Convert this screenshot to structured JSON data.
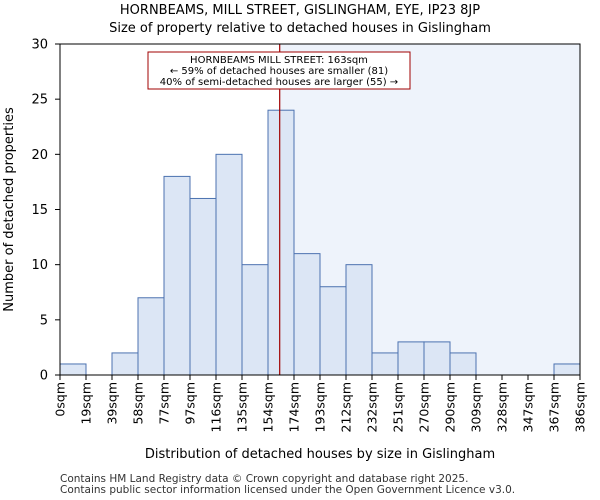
{
  "chart_data": {
    "type": "bar",
    "title_line1": "HORNBEAMS, MILL STREET, GISLINGHAM, EYE, IP23 8JP",
    "title_line2": "Size of property relative to detached houses in Gislingham",
    "xlabel": "Distribution of detached houses by size in Gislingham",
    "ylabel": "Number of detached properties",
    "ylim": [
      0,
      30
    ],
    "y_ticks": [
      "0",
      "5",
      "10",
      "15",
      "20",
      "25",
      "30"
    ],
    "bin_edges": [
      "0sqm",
      "19sqm",
      "39sqm",
      "58sqm",
      "77sqm",
      "97sqm",
      "116sqm",
      "135sqm",
      "154sqm",
      "174sqm",
      "193sqm",
      "212sqm",
      "232sqm",
      "251sqm",
      "270sqm",
      "290sqm",
      "309sqm",
      "328sqm",
      "347sqm",
      "367sqm",
      "386sqm"
    ],
    "values": [
      1,
      0,
      2,
      7,
      18,
      16,
      20,
      10,
      24,
      11,
      8,
      10,
      2,
      3,
      3,
      2,
      0,
      0,
      0,
      1
    ],
    "highlight": {
      "marker_value_sqm": 163,
      "marker_bin_position": 8.45,
      "annotation_lines": [
        "HORNBEAMS MILL STREET: 163sqm",
        "← 59% of detached houses are smaller (81)",
        "40% of semi-detached houses are larger (55) →"
      ]
    },
    "colors": {
      "bar_fill": "#dce6f5",
      "bar_stroke": "#4c72b0",
      "marker": "#a00000",
      "shade": "#eef3fb"
    }
  },
  "footer": {
    "line1": "Contains HM Land Registry data © Crown copyright and database right 2025.",
    "line2": "Contains public sector information licensed under the Open Government Licence v3.0."
  }
}
